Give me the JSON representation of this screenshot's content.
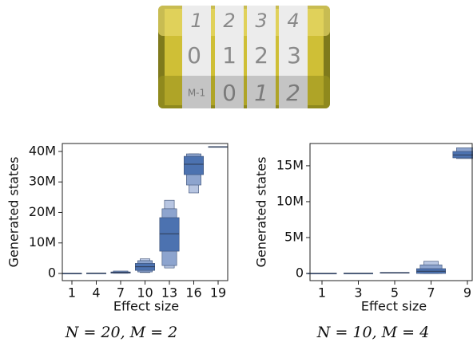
{
  "illustration": {
    "rows": [
      [
        "1",
        "2",
        "3",
        "4"
      ],
      [
        "0",
        "1",
        "2",
        "3"
      ],
      [
        "M-1",
        "0",
        "1",
        "2"
      ]
    ]
  },
  "chart_data": [
    {
      "type": "boxen",
      "xlabel": "Effect size",
      "ylabel": "Generated states",
      "caption": "N = 20, M = 2",
      "categories": [
        1,
        4,
        7,
        10,
        13,
        16,
        19
      ],
      "colors": [
        "#4c72b0",
        "#8da4ce",
        "#b7c5e1"
      ],
      "medians": [
        50000,
        100000,
        300000,
        2200000,
        13000000,
        35800000,
        41500000
      ],
      "boxes": [
        [
          [
            20000,
            80000
          ]
        ],
        [
          [
            50000,
            150000
          ]
        ],
        [
          [
            100000,
            500000
          ],
          [
            50000,
            800000
          ]
        ],
        [
          [
            1000000,
            3300000
          ],
          [
            500000,
            4200000
          ],
          [
            300000,
            4800000
          ]
        ],
        [
          [
            7300000,
            18300000
          ],
          [
            2600000,
            21200000
          ],
          [
            1800000,
            24000000
          ]
        ],
        [
          [
            32400000,
            38400000
          ],
          [
            29000000,
            39200000
          ],
          [
            26400000,
            39200000
          ]
        ],
        [
          [
            41400000,
            41600000
          ]
        ]
      ],
      "ylim": [
        -2350000,
        42600000
      ],
      "yticks": [
        0,
        {
          "value": 10000000,
          "label": "10M"
        },
        {
          "value": 20000000,
          "label": "20M"
        },
        {
          "value": 30000000,
          "label": "30M"
        },
        {
          "value": 40000000,
          "label": "40M"
        }
      ]
    },
    {
      "type": "boxen",
      "xlabel": "Effect size",
      "ylabel": "Generated states",
      "caption": "N = 10, M = 4",
      "categories": [
        1,
        3,
        5,
        7,
        9
      ],
      "colors": [
        "#4c72b0",
        "#8da4ce",
        "#b7c5e1"
      ],
      "medians": [
        20000,
        30000,
        100000,
        300000,
        16500000
      ],
      "boxes": [
        [
          [
            10000,
            40000
          ]
        ],
        [
          [
            15000,
            50000
          ]
        ],
        [
          [
            50000,
            150000
          ]
        ],
        [
          [
            0,
            670000
          ],
          [
            0,
            1200000
          ],
          [
            0,
            1700000
          ]
        ],
        [
          [
            16100000,
            17000000
          ],
          [
            16000000,
            17500000
          ]
        ]
      ],
      "ylim": [
        -1000000,
        18100000
      ],
      "yticks": [
        0,
        {
          "value": 5000000,
          "label": "5M"
        },
        {
          "value": 10000000,
          "label": "10M"
        },
        {
          "value": 15000000,
          "label": "15M"
        }
      ]
    }
  ]
}
